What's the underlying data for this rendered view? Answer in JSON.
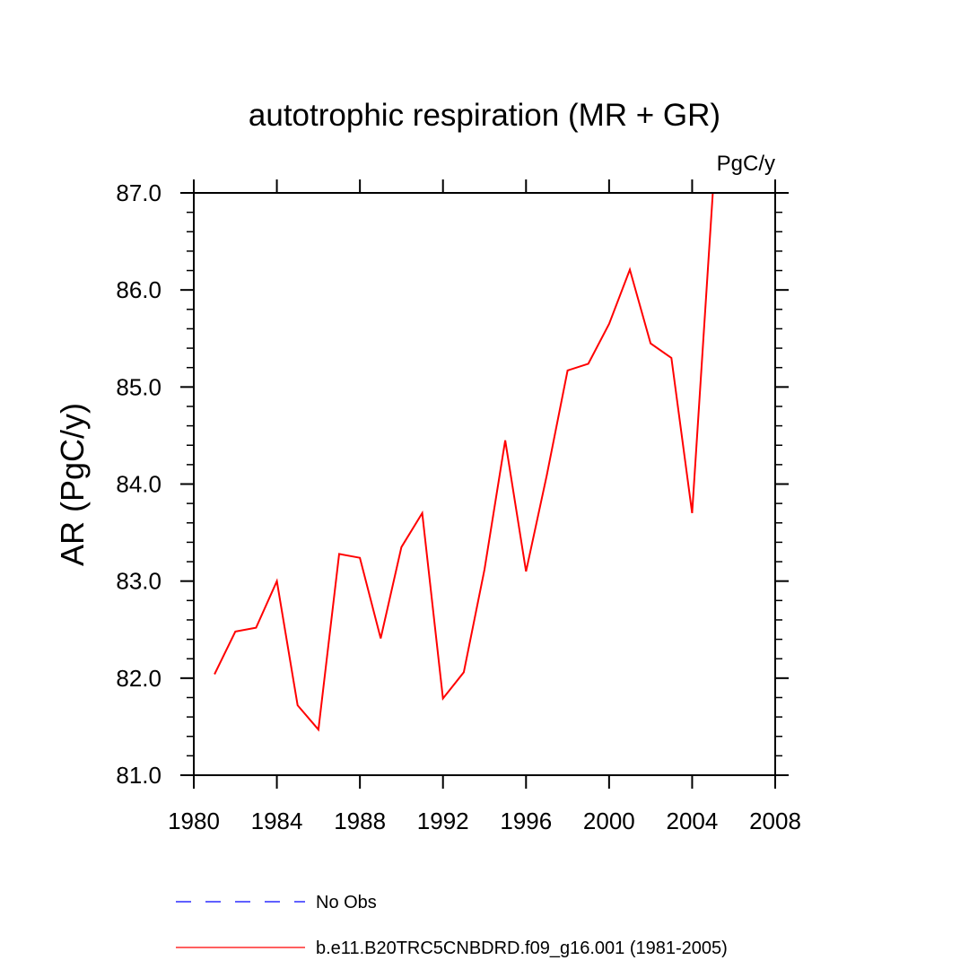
{
  "chart_data": {
    "type": "line",
    "title": "autotrophic respiration (MR + GR)",
    "units_label": "PgC/y",
    "ylabel": "AR  (PgC/y)",
    "xlabel": "",
    "xlim": [
      1980,
      2008
    ],
    "ylim": [
      81.0,
      87.0
    ],
    "x_ticks": [
      1980,
      1984,
      1988,
      1992,
      1996,
      2000,
      2004,
      2008
    ],
    "x_tick_labels": [
      "1980",
      "1984",
      "1988",
      "1992",
      "1996",
      "2000",
      "2004",
      "2008"
    ],
    "y_ticks": [
      81.0,
      82.0,
      83.0,
      84.0,
      85.0,
      86.0,
      87.0
    ],
    "y_tick_labels": [
      "81.0",
      "82.0",
      "83.0",
      "84.0",
      "85.0",
      "86.0",
      "87.0"
    ],
    "grid": false,
    "legend_position": "bottom",
    "series": [
      {
        "name": "No Obs",
        "color": "#0000ff",
        "style": "dashed",
        "x": [],
        "y": []
      },
      {
        "name": "b.e11.B20TRC5CNBDRD.f09_g16.001 (1981-2005)",
        "color": "#ff0000",
        "style": "solid",
        "x": [
          1981,
          1982,
          1983,
          1984,
          1985,
          1986,
          1987,
          1988,
          1989,
          1990,
          1991,
          1992,
          1993,
          1994,
          1995,
          1996,
          1997,
          1998,
          1999,
          2000,
          2001,
          2002,
          2003,
          2004,
          2005
        ],
        "y": [
          82.04,
          82.48,
          82.52,
          83.0,
          81.72,
          81.47,
          83.28,
          83.24,
          82.41,
          83.35,
          83.7,
          81.79,
          82.06,
          83.12,
          84.45,
          83.1,
          84.09,
          85.17,
          85.24,
          85.65,
          86.21,
          85.45,
          85.3,
          83.7,
          87.02
        ]
      }
    ]
  }
}
